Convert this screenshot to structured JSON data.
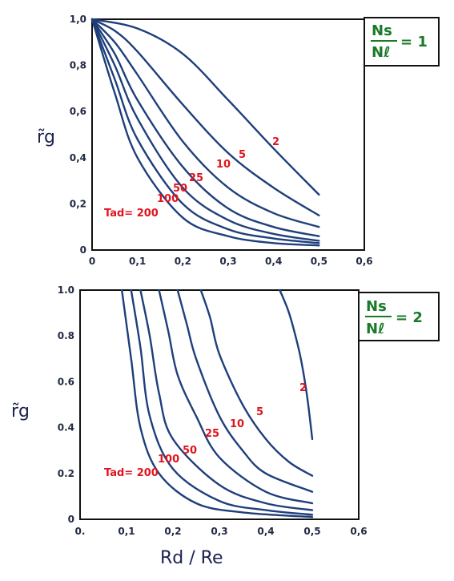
{
  "chart_data": [
    {
      "type": "line",
      "xlabel": "",
      "ylabel": "r̃g",
      "xlim": [
        0,
        0.6
      ],
      "ylim": [
        0,
        1.0
      ],
      "x_ticks": [
        "0",
        "0,1",
        "0,2",
        "0,3",
        "0,4",
        "0,5",
        "0,6"
      ],
      "y_ticks": [
        "0",
        "0,2",
        "0,4",
        "0,6",
        "0,8",
        "1,0"
      ],
      "ratio_box": {
        "numerator": "Ns",
        "denominator": "Nℓ",
        "value": "= 1"
      },
      "series": [
        {
          "name": "2",
          "label": "2",
          "points": [
            [
              0,
              1.0
            ],
            [
              0.1,
              0.96
            ],
            [
              0.2,
              0.85
            ],
            [
              0.3,
              0.65
            ],
            [
              0.4,
              0.44
            ],
            [
              0.5,
              0.24
            ]
          ]
        },
        {
          "name": "5",
          "label": "5",
          "points": [
            [
              0,
              1.0
            ],
            [
              0.05,
              0.95
            ],
            [
              0.1,
              0.86
            ],
            [
              0.2,
              0.63
            ],
            [
              0.3,
              0.42
            ],
            [
              0.4,
              0.27
            ],
            [
              0.5,
              0.15
            ]
          ]
        },
        {
          "name": "10",
          "label": "10",
          "points": [
            [
              0,
              1.0
            ],
            [
              0.05,
              0.9
            ],
            [
              0.1,
              0.76
            ],
            [
              0.2,
              0.47
            ],
            [
              0.3,
              0.27
            ],
            [
              0.4,
              0.16
            ],
            [
              0.5,
              0.1
            ]
          ]
        },
        {
          "name": "25",
          "label": "25",
          "points": [
            [
              0,
              1.0
            ],
            [
              0.05,
              0.85
            ],
            [
              0.1,
              0.65
            ],
            [
              0.2,
              0.36
            ],
            [
              0.3,
              0.18
            ],
            [
              0.4,
              0.1
            ],
            [
              0.5,
              0.06
            ]
          ]
        },
        {
          "name": "50",
          "label": "50",
          "points": [
            [
              0,
              1.0
            ],
            [
              0.05,
              0.8
            ],
            [
              0.1,
              0.57
            ],
            [
              0.2,
              0.27
            ],
            [
              0.3,
              0.13
            ],
            [
              0.4,
              0.07
            ],
            [
              0.5,
              0.04
            ]
          ]
        },
        {
          "name": "100",
          "label": "100",
          "points": [
            [
              0,
              1.0
            ],
            [
              0.05,
              0.74
            ],
            [
              0.1,
              0.48
            ],
            [
              0.2,
              0.2
            ],
            [
              0.3,
              0.09
            ],
            [
              0.4,
              0.05
            ],
            [
              0.5,
              0.03
            ]
          ]
        },
        {
          "name": "200",
          "label": "Tad= 200",
          "points": [
            [
              0,
              1.0
            ],
            [
              0.05,
              0.68
            ],
            [
              0.1,
              0.4
            ],
            [
              0.2,
              0.14
            ],
            [
              0.3,
              0.06
            ],
            [
              0.4,
              0.03
            ],
            [
              0.5,
              0.02
            ]
          ]
        }
      ]
    },
    {
      "type": "line",
      "xlabel": "Rd / Re",
      "ylabel": "r̃g",
      "xlim": [
        0,
        0.6
      ],
      "ylim": [
        0,
        1.0
      ],
      "x_ticks": [
        "0.",
        "0,1",
        "0,2",
        "0,3",
        "0,4",
        "0,5",
        "0,6"
      ],
      "y_ticks": [
        "0",
        "0.2",
        "0.4",
        "0.6",
        "0.8",
        "1.0"
      ],
      "ratio_box": {
        "numerator": "Ns",
        "denominator": "Nℓ",
        "value": "= 2"
      },
      "series": [
        {
          "name": "2",
          "label": "2",
          "points": [
            [
              0.43,
              1.0
            ],
            [
              0.45,
              0.9
            ],
            [
              0.47,
              0.75
            ],
            [
              0.48,
              0.65
            ],
            [
              0.49,
              0.52
            ],
            [
              0.5,
              0.35
            ]
          ]
        },
        {
          "name": "5",
          "label": "5",
          "points": [
            [
              0.26,
              1.0
            ],
            [
              0.28,
              0.88
            ],
            [
              0.3,
              0.72
            ],
            [
              0.35,
              0.5
            ],
            [
              0.4,
              0.35
            ],
            [
              0.45,
              0.25
            ],
            [
              0.5,
              0.19
            ]
          ]
        },
        {
          "name": "10",
          "label": "10",
          "points": [
            [
              0.21,
              1.0
            ],
            [
              0.23,
              0.85
            ],
            [
              0.25,
              0.7
            ],
            [
              0.3,
              0.45
            ],
            [
              0.35,
              0.3
            ],
            [
              0.4,
              0.2
            ],
            [
              0.5,
              0.12
            ]
          ]
        },
        {
          "name": "25",
          "label": "25",
          "points": [
            [
              0.17,
              1.0
            ],
            [
              0.19,
              0.82
            ],
            [
              0.21,
              0.63
            ],
            [
              0.25,
              0.45
            ],
            [
              0.3,
              0.27
            ],
            [
              0.4,
              0.12
            ],
            [
              0.5,
              0.07
            ]
          ]
        },
        {
          "name": "50",
          "label": "50",
          "points": [
            [
              0.13,
              1.0
            ],
            [
              0.15,
              0.8
            ],
            [
              0.17,
              0.55
            ],
            [
              0.2,
              0.35
            ],
            [
              0.3,
              0.15
            ],
            [
              0.4,
              0.07
            ],
            [
              0.5,
              0.04
            ]
          ]
        },
        {
          "name": "100",
          "label": "100",
          "points": [
            [
              0.11,
              1.0
            ],
            [
              0.13,
              0.75
            ],
            [
              0.15,
              0.45
            ],
            [
              0.2,
              0.22
            ],
            [
              0.3,
              0.08
            ],
            [
              0.4,
              0.04
            ],
            [
              0.5,
              0.02
            ]
          ]
        },
        {
          "name": "200",
          "label": "Tad= 200",
          "points": [
            [
              0.09,
              1.0
            ],
            [
              0.11,
              0.7
            ],
            [
              0.13,
              0.4
            ],
            [
              0.17,
              0.2
            ],
            [
              0.25,
              0.07
            ],
            [
              0.35,
              0.03
            ],
            [
              0.5,
              0.01
            ]
          ]
        }
      ]
    }
  ]
}
